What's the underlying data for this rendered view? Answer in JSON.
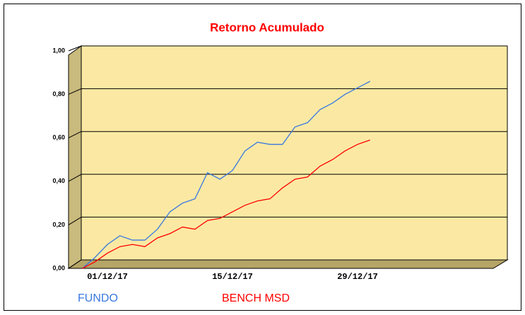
{
  "chart_data": {
    "type": "line",
    "title": "Retorno Acumulado",
    "categories": [
      null,
      null,
      "01/12/17",
      null,
      null,
      null,
      null,
      null,
      null,
      null,
      null,
      null,
      "15/12/17",
      null,
      null,
      null,
      null,
      null,
      null,
      null,
      null,
      null,
      "29/12/17",
      null
    ],
    "series": [
      {
        "name": "FUNDO",
        "color": "#3a78e0",
        "values": [
          0,
          0.05,
          0.11,
          0.15,
          0.13,
          0.13,
          0.18,
          0.26,
          0.3,
          0.32,
          0.44,
          0.41,
          0.45,
          0.54,
          0.58,
          0.57,
          0.57,
          0.65,
          0.67,
          0.73,
          0.76,
          0.8,
          0.83,
          0.86
        ]
      },
      {
        "name": "BENCH MSD",
        "color": "#ff0000",
        "values": [
          0,
          0.03,
          0.07,
          0.1,
          0.11,
          0.1,
          0.14,
          0.16,
          0.19,
          0.18,
          0.22,
          0.23,
          0.26,
          0.29,
          0.31,
          0.32,
          0.37,
          0.41,
          0.42,
          0.47,
          0.5,
          0.54,
          0.57,
          0.59
        ]
      }
    ],
    "ylim": [
      0,
      1
    ],
    "yticks": [
      {
        "value": 0,
        "label": "0,00"
      },
      {
        "value": 0.2,
        "label": "0,20"
      },
      {
        "value": 0.4,
        "label": "0,40"
      },
      {
        "value": 0.6,
        "label": "0,60"
      },
      {
        "value": 0.8,
        "label": "0,80"
      },
      {
        "value": 1,
        "label": "1,00"
      }
    ],
    "grid": true
  }
}
